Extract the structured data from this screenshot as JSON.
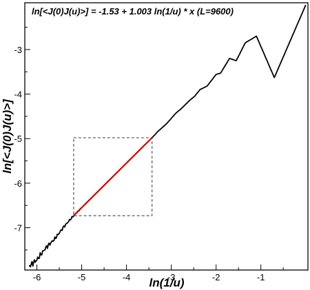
{
  "chart_data": {
    "type": "line",
    "title": "ln[<J(0)J(u)>] = -1.53 + 1.003 ln(1/u) * x  (L=9600)",
    "xlabel": "ln(1/u)",
    "ylabel": "ln[<J(0)J(u)>]",
    "xlim": [
      -6.27,
      0.05
    ],
    "ylim": [
      -7.95,
      -1.95
    ],
    "x_ticks": [
      -6,
      -5,
      -4,
      -3,
      -2,
      -1
    ],
    "y_ticks": [
      -7,
      -6,
      -5,
      -4,
      -3
    ],
    "x_tick_labels": [
      "-6",
      "-5",
      "-4",
      "-3",
      "-2",
      "-1"
    ],
    "y_tick_labels": [
      "-7",
      "-6",
      "-5",
      "-4",
      "-3"
    ],
    "series": [
      {
        "color": "#000000",
        "style": "noisy-at-left-stepped-at-right",
        "x": [
          -6.18,
          -6.0,
          -5.8,
          -5.6,
          -5.4,
          -5.18,
          -5.0,
          -4.5,
          -4.0,
          -3.43,
          -3.3,
          -3.1,
          -2.9,
          -2.78,
          -2.6,
          -2.48,
          -2.36,
          -2.2,
          -2.0,
          -1.9,
          -1.7,
          -1.55,
          -1.35,
          -1.1,
          -0.7,
          0.0
        ],
        "y": [
          -7.87,
          -7.72,
          -7.45,
          -7.25,
          -6.98,
          -6.73,
          -6.55,
          -6.05,
          -5.55,
          -4.98,
          -4.84,
          -4.66,
          -4.43,
          -4.33,
          -4.15,
          -4.05,
          -3.9,
          -3.82,
          -3.56,
          -3.53,
          -3.2,
          -3.25,
          -2.85,
          -2.7,
          -3.63,
          -2.0
        ]
      },
      {
        "color": "#d00000",
        "style": "fit",
        "x": [
          -5.18,
          -3.43
        ],
        "y": [
          -6.73,
          -4.98
        ]
      }
    ],
    "annotations": [
      {
        "type": "dashed-box",
        "x0": -5.18,
        "x1": -3.43,
        "y0": -6.73,
        "y1": -4.98
      }
    ],
    "grid": false,
    "legend": "none"
  }
}
